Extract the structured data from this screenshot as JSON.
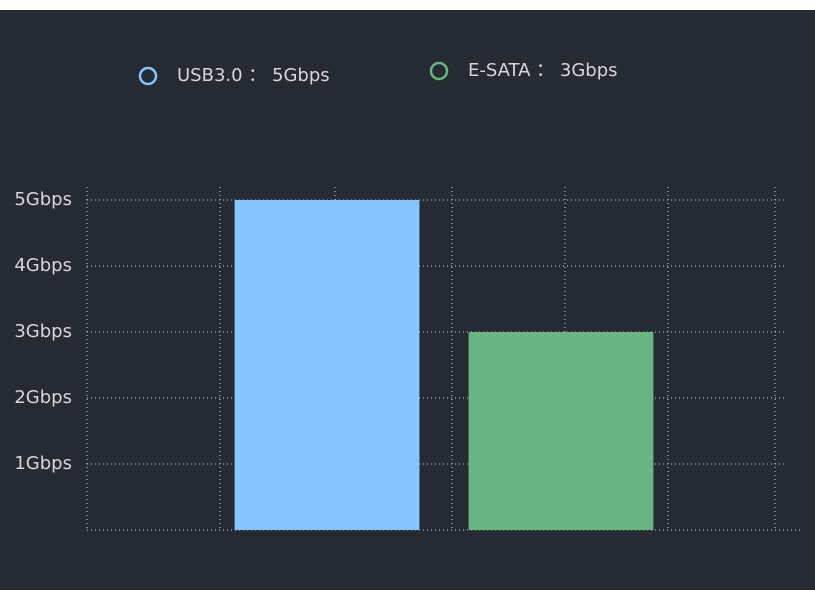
{
  "chart_data": {
    "type": "bar",
    "categories": [
      null,
      null
    ],
    "series": [
      {
        "name": "USB3.0 ： 5Gbps",
        "color": "#85c4fc",
        "values": [
          5,
          null
        ]
      },
      {
        "name": "E-SATA ： 3Gbps",
        "color": "#69b482",
        "values": [
          null,
          3
        ]
      }
    ],
    "ylim": [
      0,
      5.2
    ],
    "yticks": [
      {
        "value": 1,
        "label": "1Gbps"
      },
      {
        "value": 2,
        "label": "2Gbps"
      },
      {
        "value": 3,
        "label": "3Gbps"
      },
      {
        "value": 4,
        "label": "4Gbps"
      },
      {
        "value": 5,
        "label": "5Gbps"
      }
    ],
    "grid": true
  }
}
